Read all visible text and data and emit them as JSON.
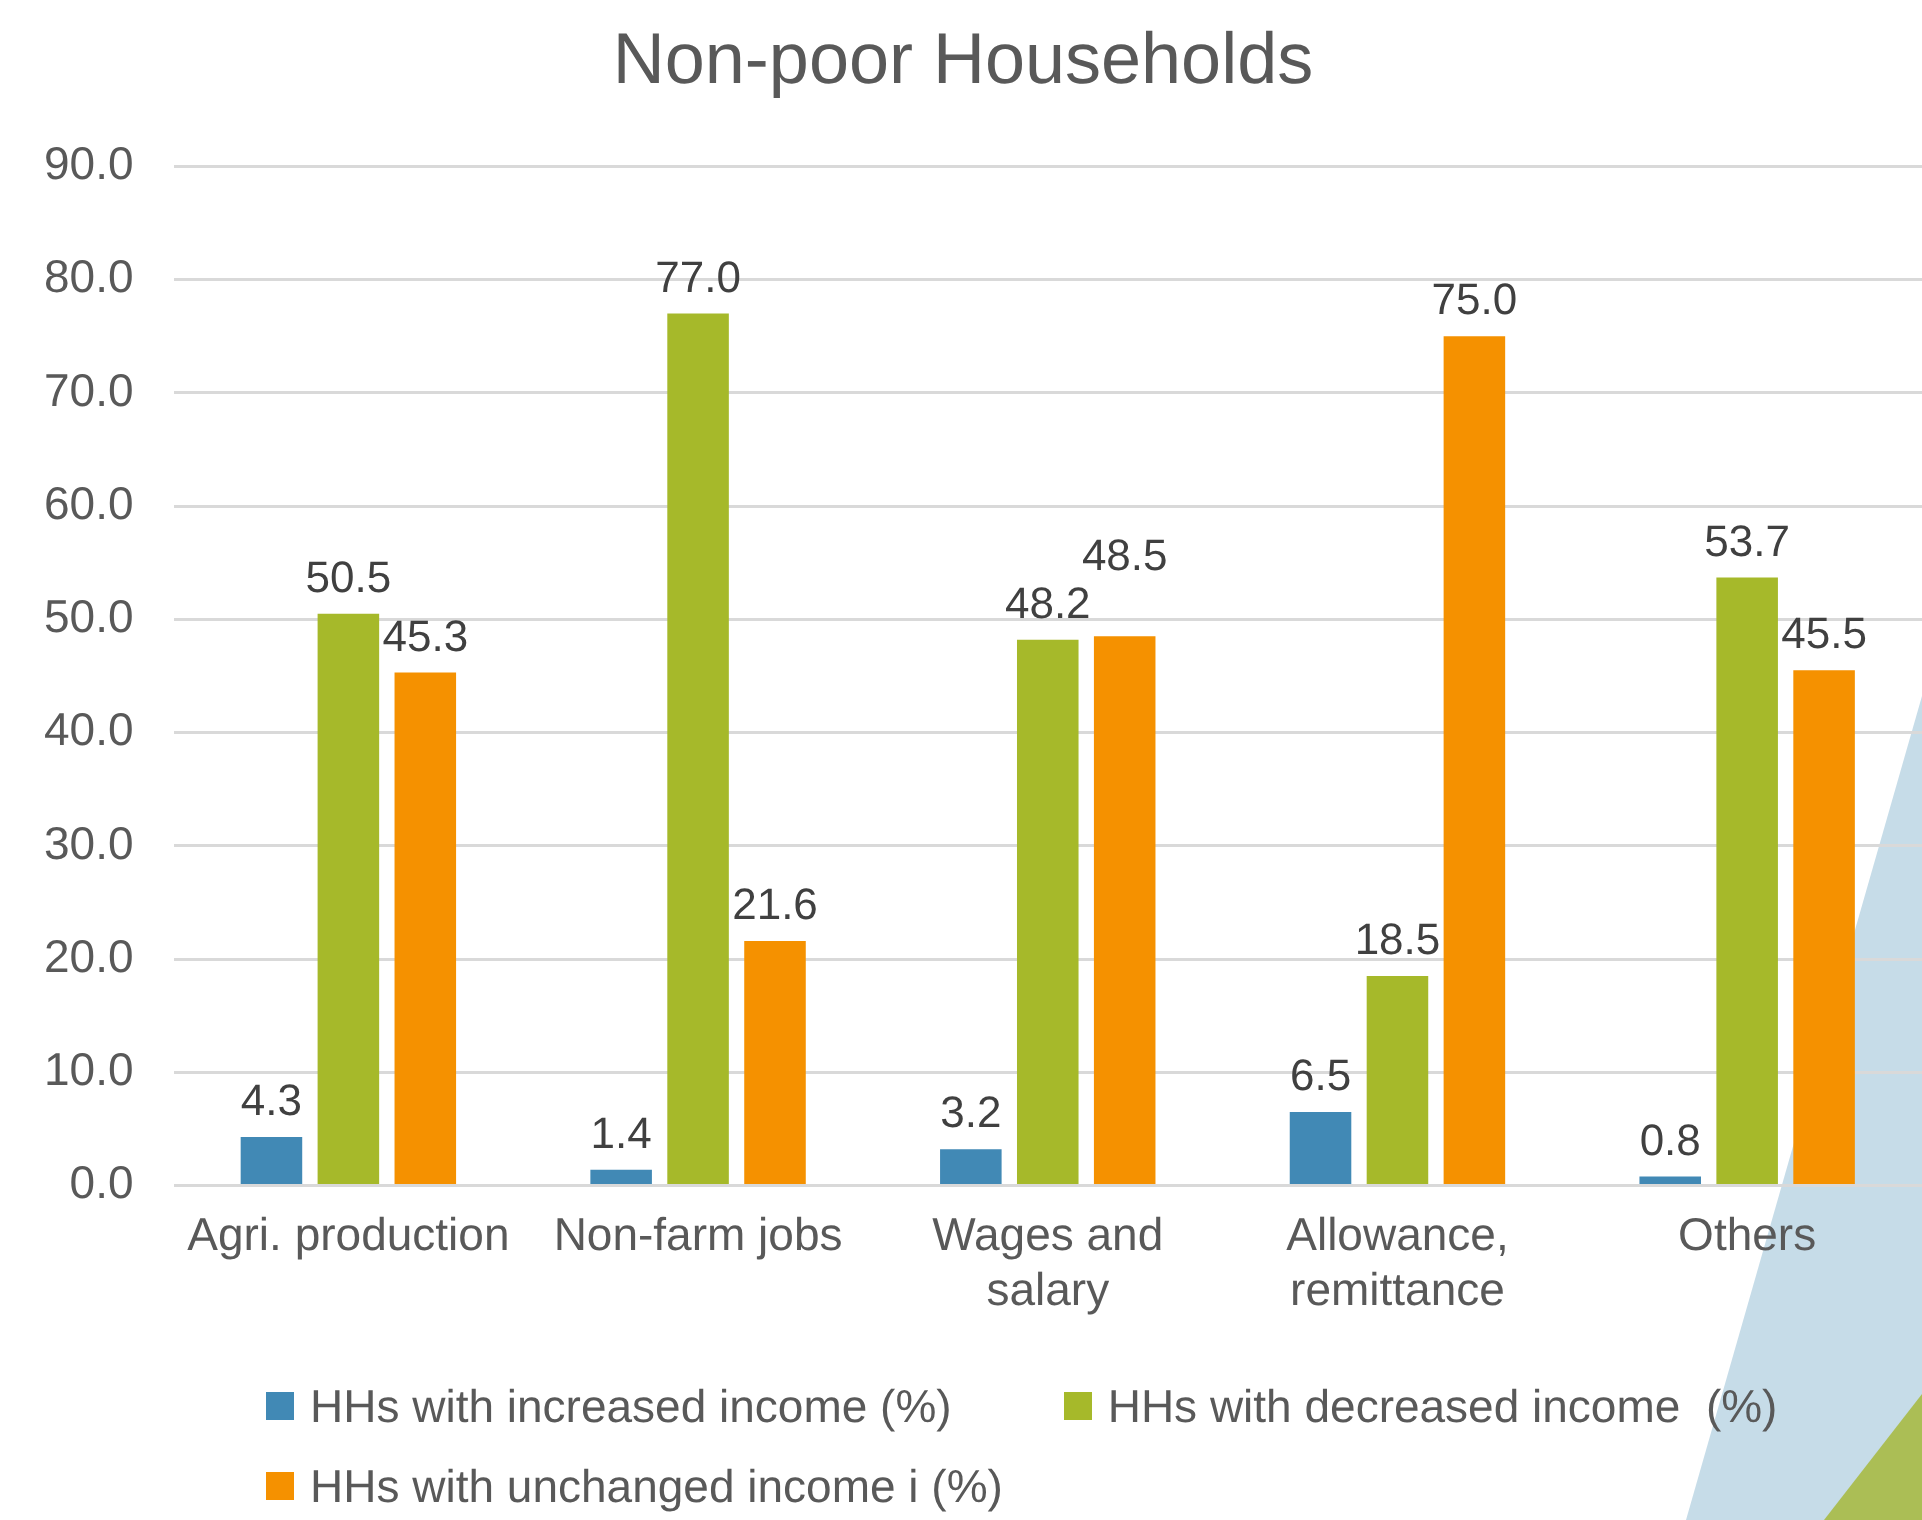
{
  "chart_data": {
    "type": "bar",
    "title": "Non-poor Households",
    "categories": [
      "Agri. production",
      "Non-farm jobs",
      "Wages and salary",
      "Allowance, remittance",
      "Others"
    ],
    "series": [
      {
        "name": "HHs with increased income (%)",
        "color": "#4189b5",
        "values": [
          4.3,
          1.4,
          3.2,
          6.5,
          0.8
        ],
        "value_labels": [
          "4.3",
          "1.4",
          "3.2",
          "6.5",
          "0.8"
        ]
      },
      {
        "name": "HHs with decreased income  (%)",
        "color": "#a6b92a",
        "values": [
          50.5,
          77.0,
          48.2,
          18.5,
          53.7
        ],
        "value_labels": [
          "50.5",
          "77.0",
          "48.2",
          "18.5",
          "53.7"
        ]
      },
      {
        "name": "HHs with unchanged income i (%)",
        "color": "#f59100",
        "values": [
          45.3,
          21.6,
          48.5,
          75.0,
          45.5
        ],
        "value_labels": [
          "45.3",
          "21.6",
          "48.5",
          "75.0",
          "45.5"
        ]
      }
    ],
    "ylim": [
      0,
      90
    ],
    "yticks": [
      {
        "value": 0,
        "label": "0.0"
      },
      {
        "value": 10,
        "label": "10.0"
      },
      {
        "value": 20,
        "label": "20.0"
      },
      {
        "value": 30,
        "label": "30.0"
      },
      {
        "value": 40,
        "label": "40.0"
      },
      {
        "value": 50,
        "label": "50.0"
      },
      {
        "value": 60,
        "label": "60.0"
      },
      {
        "value": 70,
        "label": "70.0"
      },
      {
        "value": 80,
        "label": "80.0"
      },
      {
        "value": 90,
        "label": "90.0"
      }
    ],
    "grid": "y",
    "legend": "bottom"
  }
}
